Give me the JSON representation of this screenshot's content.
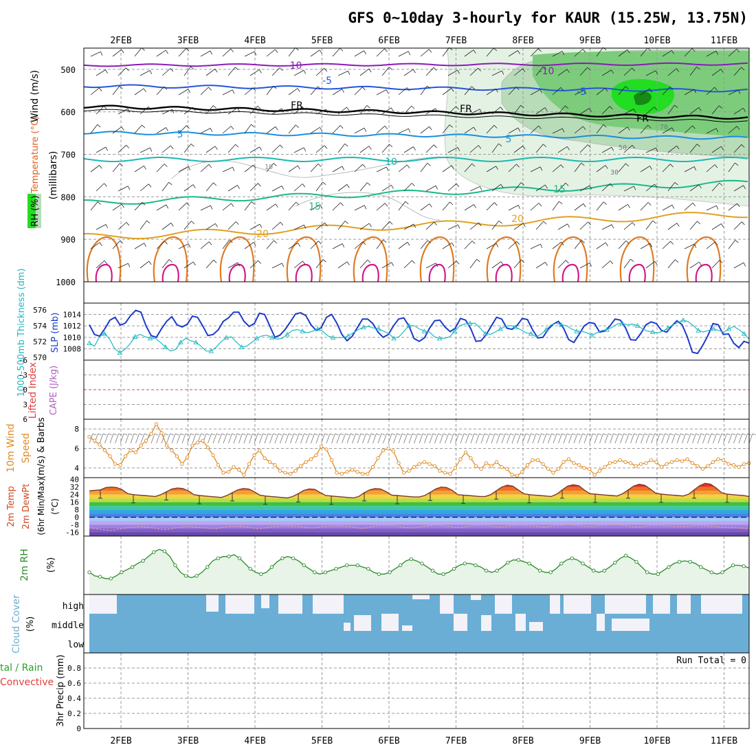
{
  "title": "GFS 0~10day 3-hourly for KAUR (15.25W, 13.75N)",
  "date_labels": [
    "2FEB",
    "3FEB",
    "4FEB",
    "5FEB",
    "6FEB",
    "7FEB",
    "8FEB",
    "9FEB",
    "10FEB",
    "11FEB"
  ],
  "colors": {
    "axis": "#000000",
    "grid": "#9a9a9a",
    "red_dash": "#e04040",
    "t_m10": "#8a1ab8",
    "t_m5": "#2255dd",
    "t_fr": "#000000",
    "t_5": "#1a8fdd",
    "t_10": "#1ab8b0",
    "t_15": "#1ab888",
    "t_20": "#e0a020",
    "t_25": "#e07a20",
    "t_30": "#d01a8a",
    "rh_light": "#e4f2e4",
    "rh_mid": "#b8dcb8",
    "rh_strong": "#7ccc7c",
    "rh_bright": "#22dd22",
    "rh_dark": "#158a15",
    "slp": "#1a3acc",
    "thickness": "#20b8c0",
    "wind10": "#e08a20",
    "rh2m": "#2a8a2a",
    "rh2m_fill": "#e8f4e8",
    "cloud": "#6aaed6",
    "cloud_clear": "#f2f2f8",
    "temp_curve": "#7a3a2a",
    "dew_curve": "#e0a0a0"
  },
  "panels": {
    "upper": {
      "ylabels": [
        {
          "text": "Wind (m/s)",
          "color": "#000000"
        },
        {
          "text": "Temperature (°C)",
          "color": "#e06020"
        },
        {
          "text": "RH (%)",
          "color": "#000000"
        },
        {
          "text": "(millibars)",
          "color": "#000000"
        }
      ],
      "ticks": [
        "500",
        "600",
        "700",
        "800",
        "900",
        "1000"
      ],
      "contour_labels": [
        "-10",
        "-10",
        "-5",
        "-5",
        "FR",
        "FR",
        "FR",
        "5",
        "5",
        "10",
        "15",
        "15",
        "20",
        "20",
        "10",
        "50",
        "30",
        "70"
      ]
    },
    "slp": {
      "ylabel_thick": "1000-500mb Thickness (dm)",
      "ylabel_slp": "SLP (mb)",
      "ticks_left": [
        "570",
        "572",
        "574",
        "576"
      ],
      "ticks_right": [
        "1008",
        "1010",
        "1012",
        "1014"
      ]
    },
    "cape": {
      "ylabel_li": "Lifted Index",
      "ylabel_cape": "CAPE (J/kg)",
      "ticks": [
        "-3",
        "0",
        "3",
        "6",
        "-6"
      ]
    },
    "wind10": {
      "ylabel1": "10m Wind",
      "ylabel2": "Speed",
      "ylabel3": "(m/s) & Barbs",
      "ticks": [
        "4",
        "6",
        "8"
      ]
    },
    "temp2m": {
      "ylabel1": "2m Temp",
      "ylabel2": "2m DewPt",
      "ylabel3": "(6hr Min/Max)",
      "ylabel4": "(°C)",
      "ticks": [
        "40",
        "32",
        "24",
        "16",
        "8",
        "0",
        "-8",
        "-16"
      ]
    },
    "rh2m": {
      "ylabel1": "2m RH",
      "ylabel2": "(%)"
    },
    "cloud": {
      "ylabel1": "Cloud Cover",
      "ylabel2": "(%)",
      "level_labels": [
        "high",
        "middle",
        "low"
      ]
    },
    "precip": {
      "ylabel_total": "tal / Rain",
      "ylabel_conv": "Convective",
      "ylabel_main": "3hr Precip (mm)",
      "ticks": [
        "0.8",
        "0.6",
        "0.4",
        "0.2",
        "0"
      ],
      "run_total": "Run Total = 0"
    }
  },
  "chart_data": [
    {
      "type": "line",
      "name": "slp_thickness",
      "series": [
        {
          "name": "SLP (mb)",
          "values": [
            1012.2,
            1010.5,
            1010.2,
            1011.5,
            1013.0,
            1013.5,
            1012.1,
            1012.5,
            1013.8,
            1014.7,
            1014.4,
            1012.0,
            1010.3,
            1010.0,
            1011.5,
            1012.8,
            1013.6,
            1012.2,
            1011.8,
            1012.3,
            1013.7,
            1013.5,
            1012.0,
            1010.3,
            1010.5,
            1011.3,
            1012.8,
            1013.4,
            1014.4,
            1014.4,
            1012.8,
            1011.9,
            1012.4,
            1014.2,
            1014.0,
            1012.0,
            1010.0,
            1010.4,
            1011.4,
            1012.7,
            1014.1,
            1014.3,
            1013.8,
            1012.2,
            1011.2,
            1011.7,
            1013.5,
            1014.0,
            1012.5,
            1010.5,
            1009.4,
            1010.2,
            1011.7,
            1013.2,
            1013.2,
            1012.4,
            1010.9,
            1010.0,
            1010.5,
            1012.0,
            1013.2,
            1013.4,
            1012.0,
            1009.8,
            1009.3,
            1009.9,
            1011.6,
            1012.9,
            1013.0,
            1011.8,
            1011.0,
            1011.6,
            1013.3,
            1013.0,
            1011.5,
            1009.3,
            1009.4,
            1010.5,
            1012.0,
            1013.5,
            1013.2,
            1011.6,
            1011.4,
            1012.1,
            1013.3,
            1013.1,
            1011.3,
            1009.9,
            1010.0,
            1011.4,
            1012.3,
            1012.8,
            1011.6,
            1009.6,
            1009.1,
            1010.5,
            1012.0,
            1012.6,
            1012.4,
            1010.9,
            1011.1,
            1012.0,
            1013.2,
            1013.0,
            1011.7,
            1009.6,
            1009.5,
            1010.7,
            1012.2,
            1012.7,
            1012.4,
            1011.2,
            1010.9,
            1012.0,
            1012.9,
            1012.2,
            1010.1,
            1007.4,
            1007.2,
            1008.6,
            1010.3,
            1012.4,
            1012.2,
            1010.5,
            1010.6,
            1009.0,
            1008.2,
            1009.3,
            1009.0
          ]
        },
        {
          "name": "1000-500mb Thickness (dm)",
          "values": [
            571.8,
            571.4,
            572.6,
            573.0,
            572.3,
            571.1,
            570.6,
            571.0,
            571.7,
            572.6,
            572.9,
            572.6,
            572.4,
            572.4,
            571.9,
            571.3,
            570.8,
            571.0,
            571.9,
            572.4,
            572.1,
            571.9,
            571.4,
            570.8,
            570.8,
            571.3,
            572.0,
            572.5,
            572.6,
            571.9,
            571.3,
            571.4,
            571.9,
            572.4,
            572.7,
            572.8,
            572.5,
            572.3,
            572.4,
            572.9,
            573.4,
            573.5,
            573.3,
            573.1,
            573.3,
            573.6,
            573.3,
            572.7,
            572.5,
            572.5,
            572.5,
            572.7,
            573.1,
            573.5,
            573.8,
            573.9,
            573.7,
            573.6,
            573.3,
            573.0,
            572.4,
            572.6,
            573.3,
            574.0,
            574.0,
            573.6,
            573.3,
            573.2,
            572.6,
            572.4,
            572.4,
            572.6,
            573.3,
            574.0,
            574.2,
            574.3,
            574.3,
            573.7,
            573.0,
            572.9,
            573.2,
            573.6,
            573.9,
            574.0,
            573.8,
            573.5,
            573.1,
            573.0,
            572.6,
            572.9,
            573.5,
            574.1,
            574.3,
            574.1,
            574.0,
            573.6,
            573.3,
            573.3,
            573.1,
            572.8,
            573.1,
            573.4,
            573.5,
            573.8,
            574.2,
            574.3,
            574.1,
            574.2,
            574.0,
            573.6,
            573.3,
            573.2,
            573.1,
            573.3,
            573.7,
            574.1,
            574.4,
            574.7,
            574.5,
            574.0,
            573.4,
            573.2,
            573.4,
            573.6,
            573.4,
            573.2,
            573.6,
            573.9,
            573.5,
            573.0,
            572.3
          ]
        }
      ],
      "ylim_slp": [
        1006.5,
        1015.5
      ],
      "ylim_thickness": [
        570,
        576.5
      ]
    },
    {
      "type": "line",
      "name": "wind10m_speed",
      "series": [
        {
          "name": "10m Wind Speed (m/s)",
          "values": [
            7.2,
            6.8,
            6.4,
            5.8,
            5.2,
            4.4,
            4.3,
            5.2,
            5.8,
            5.6,
            6.3,
            6.8,
            7.5,
            8.5,
            7.6,
            6.3,
            5.8,
            5.2,
            4.4,
            5.1,
            6.3,
            6.6,
            6.8,
            6.1,
            5.3,
            4.3,
            3.5,
            3.6,
            4.1,
            3.8,
            3.3,
            4.4,
            5.3,
            5.8,
            5.0,
            4.6,
            4.3,
            3.7,
            3.5,
            3.4,
            3.7,
            4.2,
            4.6,
            4.9,
            5.3,
            6.2,
            5.9,
            4.8,
            3.5,
            3.4,
            3.6,
            3.8,
            3.6,
            3.4,
            3.4,
            4.1,
            5.0,
            5.8,
            6.0,
            5.7,
            4.5,
            3.5,
            3.7,
            4.1,
            4.4,
            4.6,
            4.4,
            4.2,
            3.7,
            3.5,
            3.4,
            4.0,
            4.9,
            5.6,
            5.0,
            4.2,
            3.9,
            4.5,
            4.2,
            4.6,
            4.1,
            3.9,
            3.3,
            3.2,
            3.6,
            4.3,
            4.8,
            4.8,
            4.4,
            3.9,
            3.5,
            3.9,
            4.6,
            4.9,
            4.5,
            4.3,
            4.0,
            3.9,
            3.3,
            3.7,
            4.1,
            4.5,
            4.6,
            4.8,
            4.6,
            4.5,
            4.2,
            4.4,
            4.5,
            4.8,
            4.6,
            4.1,
            4.4,
            4.6,
            4.8,
            4.7,
            4.9,
            4.5,
            4.2,
            3.9,
            4.2,
            4.6,
            4.9,
            4.8,
            4.4,
            4.3,
            4.1,
            4.4,
            4.5
          ]
        }
      ],
      "ylim": [
        3,
        9
      ]
    },
    {
      "type": "line",
      "name": "temp2m",
      "series": [
        {
          "name": "2m Temp (°C)",
          "values": [
            28,
            28.5,
            29,
            31.5,
            32,
            31.5,
            29,
            25,
            24,
            23.5,
            23,
            22.5,
            22,
            24,
            27,
            30,
            31,
            30.5,
            28,
            24,
            23,
            22.5,
            22,
            21.5,
            21,
            23,
            26,
            29,
            30.5,
            30,
            27,
            23.5,
            22.5,
            22,
            21.5,
            21,
            20.5,
            22,
            25,
            28.5,
            30,
            29.5,
            26,
            23,
            22.5,
            22,
            21.5,
            21,
            20.5,
            22,
            26,
            29,
            30.5,
            30,
            27,
            23.5,
            23,
            22.5,
            22,
            21.5,
            21.5,
            23,
            26.5,
            30,
            32,
            31.5,
            28.5,
            24,
            23.5,
            23,
            22.5,
            22,
            22,
            24,
            28,
            32,
            34,
            33,
            29,
            25,
            24,
            23.5,
            23,
            22.5,
            22,
            24.5,
            29,
            33,
            34.5,
            33.5,
            29,
            25,
            24.5,
            24,
            23.5,
            23,
            22.5,
            25,
            29,
            33,
            35,
            34,
            30,
            25.5,
            24.5,
            24,
            23.5,
            23,
            22.5,
            24.5,
            29,
            33.5,
            36,
            35,
            31,
            26,
            24.5,
            24,
            23.5,
            23,
            22
          ]
        },
        {
          "name": "2m DewPt (°C)",
          "values": [
            -11,
            -12,
            -13,
            -13.5,
            -14,
            -13,
            -12,
            -11,
            -10.5,
            -10,
            -10.5,
            -11,
            -12,
            -13,
            -13,
            -12,
            -11,
            -10,
            -10,
            -10.5,
            -11,
            -11.5,
            -12,
            -12,
            -11,
            -10,
            -9.5,
            -9.5,
            -10,
            -11,
            -12,
            -12,
            -11,
            -10,
            -9.5,
            -9,
            -9,
            -9.5,
            -10,
            -11,
            -11.5,
            -11,
            -10,
            -9.5,
            -9,
            -9,
            -9.5,
            -10,
            -11,
            -12,
            -11.5,
            -10,
            -9,
            -8.5,
            -8.5,
            -9,
            -10,
            -11,
            -11.5,
            -11,
            -10,
            -9,
            -8.5,
            -8.5,
            -9,
            -10,
            -11,
            -11,
            -10,
            -9,
            -8.5,
            -8.5,
            -9,
            -10,
            -10.5,
            -10,
            -9,
            -8.5,
            -8.5,
            -9,
            -9.5,
            -10,
            -10.5,
            -10,
            -9,
            -8.5,
            -8,
            -8,
            -8.5,
            -9.5,
            -10,
            -10,
            -9,
            -8.5,
            -8,
            -8,
            -8.5,
            -9,
            -10,
            -10.5,
            -10,
            -9,
            -8.5,
            -8.5,
            -9,
            -9.5,
            -10,
            -10,
            -9.5,
            -9,
            -9,
            -9,
            -9.5,
            -10,
            -10.5,
            -11,
            -11,
            -11.5,
            -12,
            -12.5
          ]
        }
      ],
      "ylim": [
        -20,
        42
      ]
    },
    {
      "type": "area",
      "name": "rh2m",
      "series": [
        {
          "name": "2m RH (%)",
          "values": [
            22,
            18,
            17,
            15,
            15,
            18,
            22,
            25,
            28,
            32,
            35,
            40,
            45,
            48,
            46,
            40,
            30,
            22,
            18,
            16,
            18,
            22,
            28,
            35,
            38,
            40,
            40,
            42,
            38,
            32,
            26,
            22,
            20,
            22,
            28,
            34,
            38,
            40,
            38,
            35,
            30,
            26,
            22,
            20,
            22,
            24,
            26,
            28,
            30,
            30,
            30,
            28,
            26,
            22,
            20,
            20,
            22,
            26,
            30,
            35,
            37,
            35,
            32,
            28,
            24,
            20,
            20,
            22,
            26,
            30,
            32,
            32,
            30,
            28,
            24,
            22,
            24,
            28,
            33,
            36,
            36,
            34,
            32,
            28,
            24,
            22,
            22,
            26,
            32,
            36,
            38,
            36,
            32,
            28,
            24,
            22,
            24,
            28,
            33,
            38,
            41,
            38,
            34,
            28,
            22,
            20,
            20,
            24,
            28,
            32,
            34,
            35,
            34,
            32,
            28,
            25,
            22,
            20,
            22,
            26,
            30,
            30,
            29,
            27
          ]
        }
      ],
      "ylim": [
        0,
        60
      ]
    },
    {
      "type": "bar",
      "name": "precip_3hr",
      "categories": [
        "2FEB",
        "3FEB",
        "4FEB",
        "5FEB",
        "6FEB",
        "7FEB",
        "8FEB",
        "9FEB",
        "10FEB",
        "11FEB"
      ],
      "values": [
        0,
        0,
        0,
        0,
        0,
        0,
        0,
        0,
        0,
        0
      ],
      "ylim": [
        0,
        1
      ]
    }
  ]
}
